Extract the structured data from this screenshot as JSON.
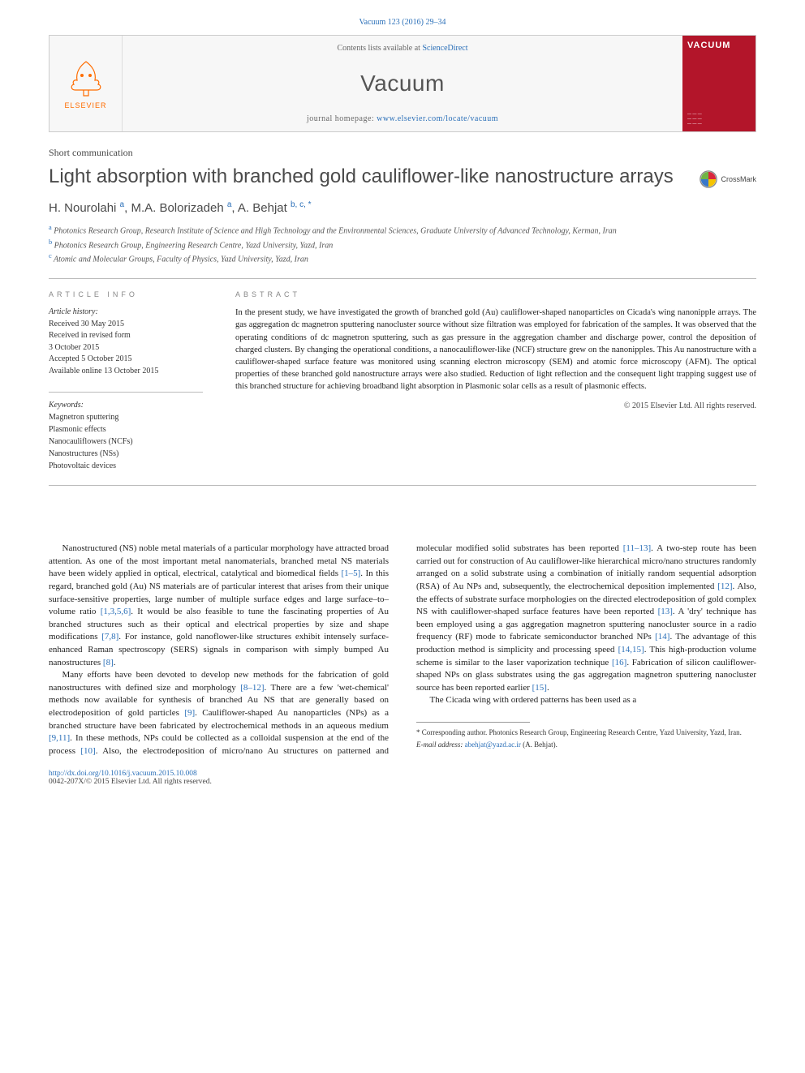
{
  "citation": "Vacuum 123 (2016) 29–34",
  "header": {
    "contents_prefix": "Contents lists available at ",
    "contents_link_text": "ScienceDirect",
    "journal_name": "Vacuum",
    "homepage_prefix": "journal homepage: ",
    "homepage_link_text": "www.elsevier.com/locate/vacuum",
    "elsevier_label": "ELSEVIER",
    "cover_title": "VACUUM"
  },
  "article_type": "Short communication",
  "title": "Light absorption with branched gold cauliflower-like nanostructure arrays",
  "crossmark_label": "CrossMark",
  "authors_html": "H. Nourolahi <sup>a</sup>, M.A. Bolorizadeh <sup>a</sup>, A. Behjat <sup>b, c, *</sup>",
  "affiliations": {
    "a": "Photonics Research Group, Research Institute of Science and High Technology and the Environmental Sciences, Graduate University of Advanced Technology, Kerman, Iran",
    "b": "Photonics Research Group, Engineering Research Centre, Yazd University, Yazd, Iran",
    "c": "Atomic and Molecular Groups, Faculty of Physics, Yazd University, Yazd, Iran"
  },
  "info": {
    "heading": "ARTICLE INFO",
    "history_label": "Article history:",
    "history": [
      "Received 30 May 2015",
      "Received in revised form",
      "3 October 2015",
      "Accepted 5 October 2015",
      "Available online 13 October 2015"
    ],
    "keywords_label": "Keywords:",
    "keywords": [
      "Magnetron sputtering",
      "Plasmonic effects",
      "Nanocauliflowers (NCFs)",
      "Nanostructures (NSs)",
      "Photovoltaic devices"
    ]
  },
  "abstract": {
    "heading": "ABSTRACT",
    "text": "In the present study, we have investigated the growth of branched gold (Au) cauliflower-shaped nanoparticles on Cicada's wing nanonipple arrays. The gas aggregation dc magnetron sputtering nanocluster source without size filtration was employed for fabrication of the samples. It was observed that the operating conditions of dc magnetron sputtering, such as gas pressure in the aggregation chamber and discharge power, control the deposition of charged clusters. By changing the operational conditions, a nanocauliflower-like (NCF) structure grew on the nanonipples. This Au nanostructure with a cauliflower-shaped surface feature was monitored using scanning electron microscopy (SEM) and atomic force microscopy (AFM). The optical properties of these branched gold nanostructure arrays were also studied. Reduction of light reflection and the consequent light trapping suggest use of this branched structure for achieving broadband light absorption in Plasmonic solar cells as a result of plasmonic effects.",
    "copyright": "© 2015 Elsevier Ltd. All rights reserved."
  },
  "body": {
    "p1_a": "Nanostructured (NS) noble metal materials of a particular morphology have attracted broad attention. As one of the most important metal nanomaterials, branched metal NS materials have been widely applied in optical, electrical, catalytical and biomedical fields ",
    "r1": "[1–5]",
    "p1_b": ". In this regard, branched gold (Au) NS materials are of particular interest that arises from their unique surface-sensitive properties, large number of multiple surface edges and large surface–to–volume ratio ",
    "r2": "[1,3,5,6]",
    "p1_c": ". It would be also feasible to tune the fascinating properties of Au branched structures such as their optical and electrical properties by size and shape modifications ",
    "r3": "[7,8]",
    "p1_d": ". For instance, gold nanoflower-like structures exhibit intensely surface-enhanced Raman spectroscopy (SERS) signals in comparison with simply bumped Au nanostructures ",
    "r4": "[8]",
    "p1_e": ".",
    "p2_a": "Many efforts have been devoted to develop new methods for the fabrication of gold nanostructures with defined size and morphology ",
    "r5": "[8–12]",
    "p2_b": ". There are a few 'wet-chemical' methods now available for synthesis of branched Au NS that are generally based on electrodeposition of gold particles ",
    "r6": "[9]",
    "p2_c": ". Cauliflower-shaped Au ",
    "p2_d": "nanoparticles (NPs) as a branched structure have been fabricated by electrochemical methods in an aqueous medium ",
    "r7": "[9,11]",
    "p2_e": ". In these methods, NPs could be collected as a colloidal suspension at the end of the process ",
    "r8": "[10]",
    "p2_f": ". Also, the electrodeposition of micro/nano Au structures on patterned and molecular modified solid substrates has been reported ",
    "r9": "[11–13]",
    "p2_g": ". A two-step route has been carried out for construction of Au cauliflower-like hierarchical micro/nano structures randomly arranged on a solid substrate using a combination of initially random sequential adsorption (RSA) of Au NPs and, subsequently, the electrochemical deposition implemented ",
    "r10": "[12]",
    "p2_h": ". Also, the effects of substrate surface morphologies on the directed electrodeposition of gold complex NS with cauliflower-shaped surface features have been reported ",
    "r11": "[13]",
    "p2_i": ". A 'dry' technique has been employed using a gas aggregation magnetron sputtering nanocluster source in a radio frequency (RF) mode to fabricate semiconductor branched NPs ",
    "r12": "[14]",
    "p2_j": ". The advantage of this production method is simplicity and processing speed ",
    "r13": "[14,15]",
    "p2_k": ". This high-production volume scheme is similar to the laser vaporization technique ",
    "r14": "[16]",
    "p2_l": ". Fabrication of silicon cauliflower-shaped NPs on glass substrates using the gas aggregation magnetron sputtering nanocluster source has been reported earlier ",
    "r15": "[15]",
    "p2_m": ".",
    "p3": "The Cicada wing with ordered patterns has been used as a"
  },
  "footnotes": {
    "corr": "* Corresponding author. Photonics Research Group, Engineering Research Centre, Yazd University, Yazd, Iran.",
    "email_label": "E-mail address: ",
    "email": "abehjat@yazd.ac.ir",
    "email_name": " (A. Behjat)."
  },
  "bottom": {
    "doi": "http://dx.doi.org/10.1016/j.vacuum.2015.10.008",
    "issn_line": "0042-207X/© 2015 Elsevier Ltd. All rights reserved."
  },
  "colors": {
    "link": "#2a6fb8",
    "elsevier_orange": "#ff6c00",
    "cover_red": "#b3152a",
    "rule": "#bbbbbb"
  }
}
